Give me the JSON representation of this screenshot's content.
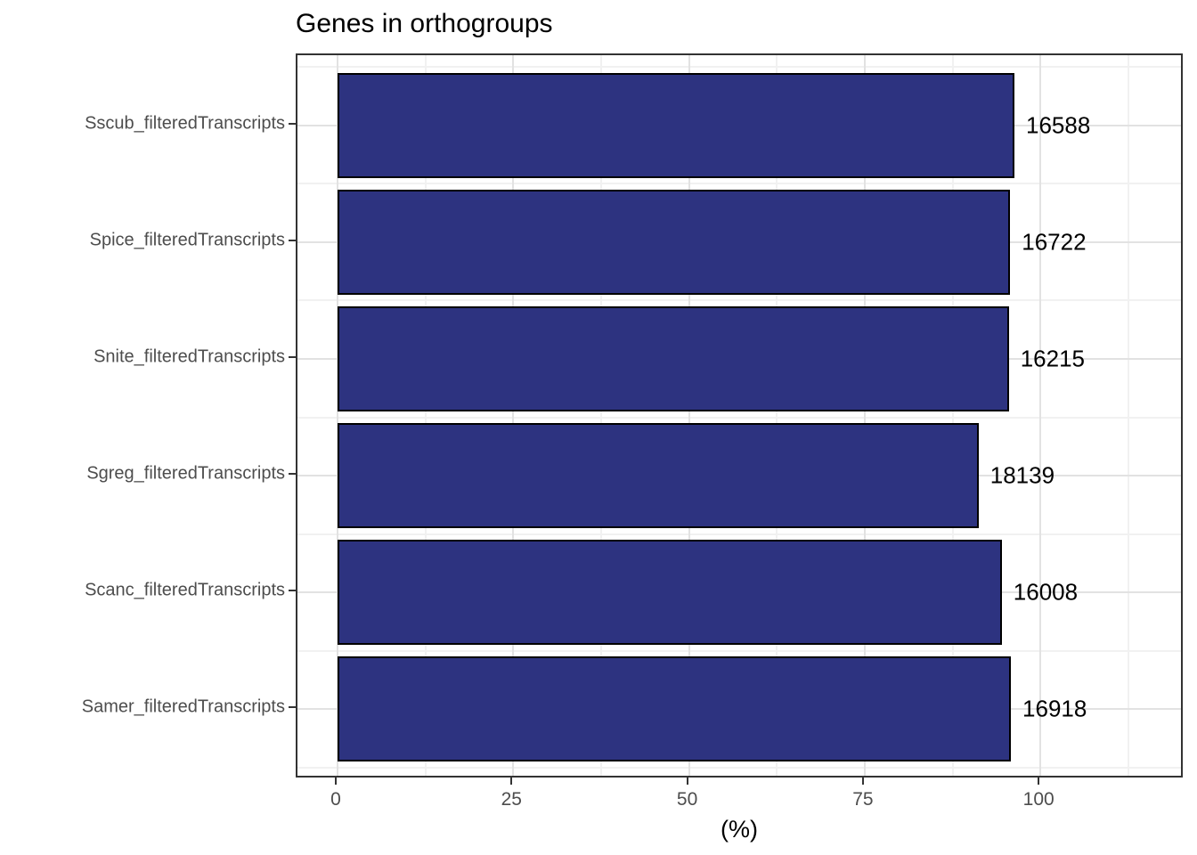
{
  "title": "Genes in orthogroups",
  "chart_data": {
    "type": "bar",
    "orientation": "horizontal",
    "title": "Genes in orthogroups",
    "xlabel": "(%)",
    "ylabel": "",
    "categories": [
      "Sscub_filteredTranscripts",
      "Spice_filteredTranscripts",
      "Snite_filteredTranscripts",
      "Sgreg_filteredTranscripts",
      "Scanc_filteredTranscripts",
      "Samer_filteredTranscripts"
    ],
    "values_pct": [
      96.3,
      95.7,
      95.5,
      91.2,
      94.5,
      95.8
    ],
    "bar_labels": [
      "16588",
      "16722",
      "16215",
      "18139",
      "16008",
      "16918"
    ],
    "x_ticks": [
      0,
      25,
      50,
      75,
      100
    ],
    "x_minor_ticks": [
      12.5,
      37.5,
      62.5,
      87.5,
      112.5
    ],
    "xlim": [
      -5.7,
      120.5
    ],
    "bar_width_fraction": 0.9,
    "grid": true,
    "legend": false,
    "colors": {
      "bar_fill": "#2D3380",
      "bar_stroke": "#000000",
      "panel_border": "#333333",
      "grid_major": "#E2E2E2",
      "grid_minor": "#F1F1F1",
      "axis_text": "#4D4D4D",
      "label_text": "#000000",
      "background": "#FFFFFF"
    }
  }
}
